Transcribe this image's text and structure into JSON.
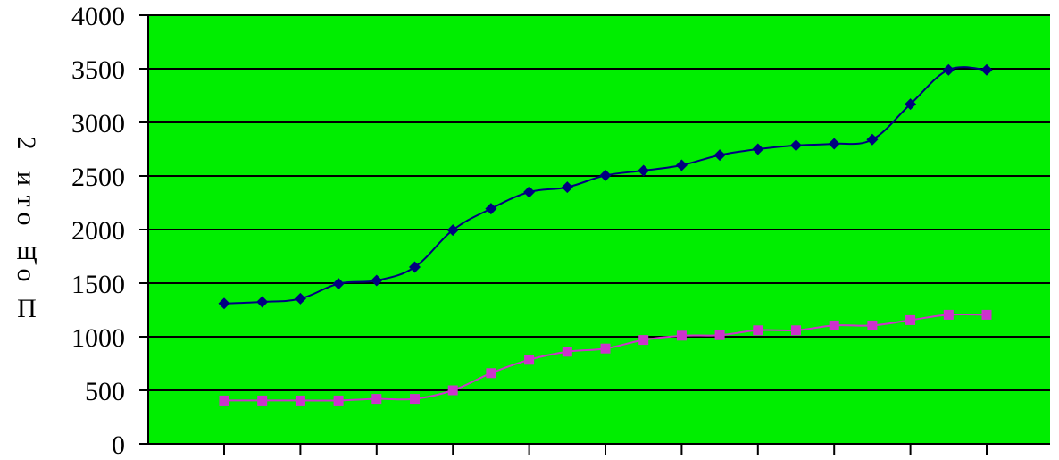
{
  "chart_data": {
    "type": "line",
    "title": "",
    "xlabel": "",
    "ylabel_fragments": [
      "2",
      "и",
      "т",
      "о",
      "щ",
      "о",
      "П"
    ],
    "ylim": [
      0,
      4000
    ],
    "yticks": [
      0,
      500,
      1000,
      1500,
      2000,
      2500,
      3000,
      3500,
      4000
    ],
    "x_count": 21,
    "grid": true,
    "legend": "none",
    "colors": {
      "plot_background": "#00EE00",
      "gridline": "#000000",
      "axis": "#000000"
    },
    "series": [
      {
        "color": "#000080",
        "marker": "diamond",
        "values": [
          1310,
          1325,
          1355,
          1495,
          1525,
          1650,
          1995,
          2195,
          2350,
          2395,
          2505,
          2550,
          2600,
          2695,
          2750,
          2785,
          2800,
          2840,
          3170,
          3490,
          3490
        ]
      },
      {
        "color": "#CC33CC",
        "marker": "square",
        "values": [
          405,
          405,
          405,
          405,
          420,
          420,
          500,
          660,
          785,
          860,
          890,
          970,
          1010,
          1015,
          1060,
          1060,
          1105,
          1105,
          1155,
          1205,
          1205
        ]
      }
    ]
  }
}
